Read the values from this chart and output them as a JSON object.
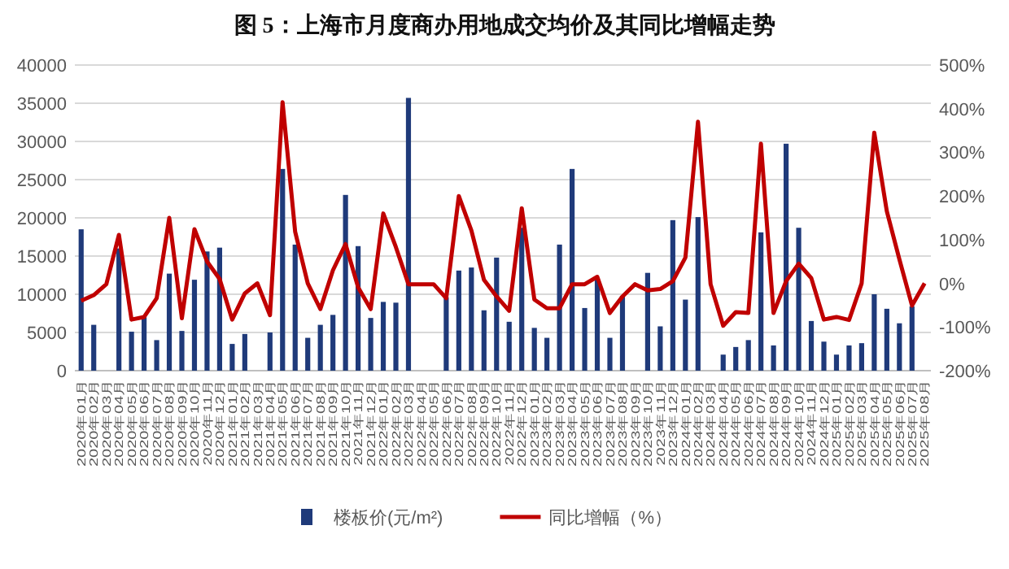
{
  "chart_data": {
    "type": "bar",
    "title": "图 5：上海市月度商办用地成交均价及其同比增幅走势",
    "categories": [
      "2020年01月",
      "2020年02月",
      "2020年03月",
      "2020年04月",
      "2020年05月",
      "2020年06月",
      "2020年07月",
      "2020年08月",
      "2020年09月",
      "2020年10月",
      "2020年11月",
      "2020年12月",
      "2021年01月",
      "2021年02月",
      "2021年03月",
      "2021年04月",
      "2021年05月",
      "2021年06月",
      "2021年07月",
      "2021年08月",
      "2021年09月",
      "2021年10月",
      "2021年11月",
      "2021年12月",
      "2022年01月",
      "2022年02月",
      "2022年03月",
      "2022年04月",
      "2022年05月",
      "2022年06月",
      "2022年07月",
      "2022年08月",
      "2022年09月",
      "2022年10月",
      "2022年11月",
      "2022年12月",
      "2023年01月",
      "2023年02月",
      "2023年03月",
      "2023年04月",
      "2023年05月",
      "2023年06月",
      "2023年07月",
      "2023年08月",
      "2023年09月",
      "2023年10月",
      "2023年11月",
      "2023年12月",
      "2024年01月",
      "2024年02月",
      "2024年03月",
      "2024年04月",
      "2024年05月",
      "2024年06月",
      "2024年07月",
      "2024年08月",
      "2024年09月",
      "2024年10月",
      "2024年11月",
      "2024年12月",
      "2025年01月",
      "2025年02月",
      "2025年03月",
      "2025年04月",
      "2025年05月",
      "2025年06月",
      "2025年07月",
      "2025年08月"
    ],
    "series": [
      {
        "name": "楼板价(元/m²)",
        "color": "#1f3a7a",
        "values": [
          18500,
          6000,
          null,
          16000,
          5100,
          7000,
          4000,
          12700,
          5200,
          11900,
          15600,
          16100,
          3500,
          4800,
          null,
          5000,
          26400,
          16500,
          4300,
          6000,
          7300,
          23000,
          16300,
          6900,
          9000,
          8900,
          35700,
          null,
          null,
          9600,
          13100,
          13500,
          7900,
          14800,
          6400,
          18700,
          5600,
          4300,
          16500,
          26400,
          8200,
          12000,
          4300,
          9800,
          null,
          12800,
          5800,
          19700,
          9300,
          20100,
          null,
          2100,
          3100,
          4000,
          18100,
          3300,
          29700,
          18700,
          6500,
          3800,
          2100,
          3300,
          3600,
          10000,
          8100,
          6200,
          8400,
          null
        ]
      },
      {
        "name": "同比增幅（%）",
        "type": "line",
        "axis": "y2",
        "color": "#c00000",
        "values": [
          -40,
          -27,
          -2,
          111,
          -83,
          -77,
          -34,
          150,
          -80,
          124,
          50,
          10,
          -83,
          -23,
          0,
          -73,
          415,
          118,
          0,
          -59,
          30,
          90,
          -9,
          -59,
          160,
          83,
          -2,
          -2,
          -2,
          -34,
          200,
          121,
          8,
          -30,
          -63,
          172,
          -37,
          -57,
          -57,
          -2,
          -2,
          15,
          -68,
          -30,
          -2,
          -16,
          -13,
          5,
          59,
          370,
          -2,
          -97,
          -66,
          -68,
          320,
          -68,
          5,
          45,
          12,
          -83,
          -77,
          -84,
          0,
          345,
          165,
          55,
          -51,
          0
        ]
      }
    ],
    "ylim": [
      0,
      40000
    ],
    "yticks": [
      0,
      5000,
      10000,
      15000,
      20000,
      25000,
      30000,
      35000,
      40000
    ],
    "y2lim": [
      -200,
      500
    ],
    "y2ticks": [
      {
        "value": -200,
        "label": "-200%"
      },
      {
        "value": -100,
        "label": "-100%"
      },
      {
        "value": 0,
        "label": "0%"
      },
      {
        "value": 100,
        "label": "100%"
      },
      {
        "value": 200,
        "label": "200%"
      },
      {
        "value": 300,
        "label": "300%"
      },
      {
        "value": 400,
        "label": "400%"
      },
      {
        "value": 500,
        "label": "500%"
      }
    ],
    "grid": "y",
    "legend": "bottom"
  }
}
